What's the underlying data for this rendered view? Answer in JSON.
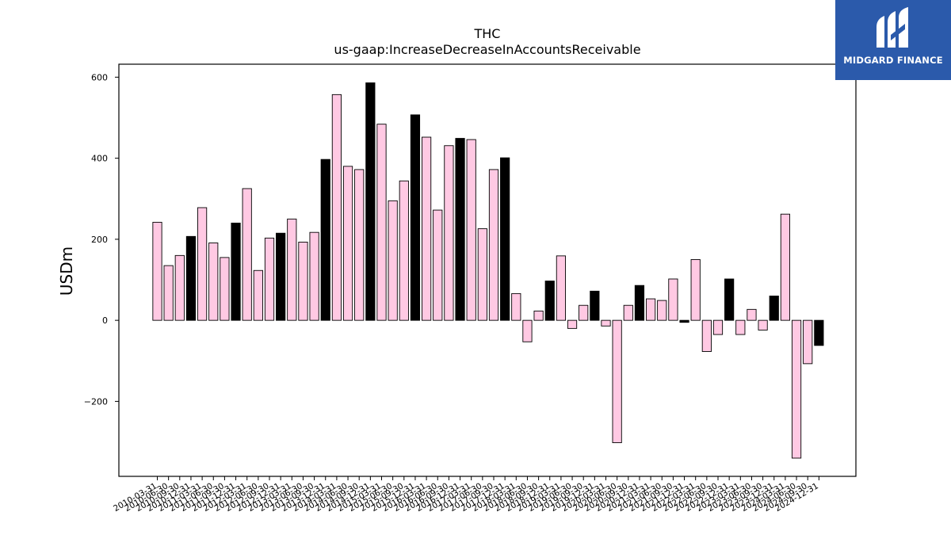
{
  "brand": {
    "name": "MIDGARD FINANCE",
    "logo_icon": "midgard-m-icon",
    "color": "#2b5aab"
  },
  "colors": {
    "q4_fill": "#000000",
    "other_fill": "#ffc9e3",
    "edge": "#000000"
  },
  "chart_data": {
    "type": "bar",
    "title": "THC",
    "subtitle": "us-gaap:IncreaseDecreaseInAccountsReceivable",
    "xlabel": "",
    "ylabel": "USDm",
    "ylim": [
      -385,
      632
    ],
    "yticks": [
      -200,
      0,
      200,
      400,
      600
    ],
    "ytick_labels": [
      "−200",
      "0",
      "200",
      "400",
      "600"
    ],
    "grid": false,
    "highlight_rule": "bars ending 12-31 are black, all others pink",
    "categories": [
      "2010-03-31",
      "2010-06-30",
      "2010-09-30",
      "2010-12-31",
      "2011-03-31",
      "2011-06-30",
      "2011-09-30",
      "2011-12-31",
      "2012-03-31",
      "2012-06-30",
      "2012-09-30",
      "2012-12-31",
      "2013-03-31",
      "2013-06-30",
      "2013-09-30",
      "2013-12-31",
      "2014-03-31",
      "2014-06-30",
      "2014-09-30",
      "2014-12-31",
      "2015-03-31",
      "2015-06-30",
      "2015-09-30",
      "2015-12-31",
      "2016-03-31",
      "2016-06-30",
      "2016-09-30",
      "2016-12-31",
      "2017-03-31",
      "2017-06-30",
      "2017-09-30",
      "2017-12-31",
      "2018-03-31",
      "2018-06-30",
      "2018-09-30",
      "2018-12-31",
      "2019-03-31",
      "2019-06-30",
      "2019-09-30",
      "2019-12-31",
      "2020-03-31",
      "2020-06-30",
      "2020-09-30",
      "2020-12-31",
      "2021-03-31",
      "2021-06-30",
      "2021-09-30",
      "2021-12-31",
      "2022-03-31",
      "2022-06-30",
      "2022-09-30",
      "2022-12-31",
      "2023-03-31",
      "2023-06-30",
      "2023-09-30",
      "2023-12-31",
      "2024-03-31",
      "2024-06-30",
      "2024-09-30",
      "2024-12-31"
    ],
    "values": [
      242,
      135,
      160,
      207,
      278,
      191,
      155,
      240,
      325,
      123,
      203,
      215,
      250,
      193,
      217,
      397,
      557,
      380,
      372,
      586,
      484,
      295,
      344,
      507,
      452,
      272,
      431,
      449,
      446,
      226,
      372,
      401,
      66,
      -53,
      23,
      97,
      159,
      -20,
      37,
      72,
      -14,
      -302,
      37,
      86,
      53,
      49,
      102,
      -5,
      150,
      -77,
      -35,
      102,
      -35,
      27,
      -24,
      60,
      262,
      -340,
      -107,
      -62
    ]
  }
}
